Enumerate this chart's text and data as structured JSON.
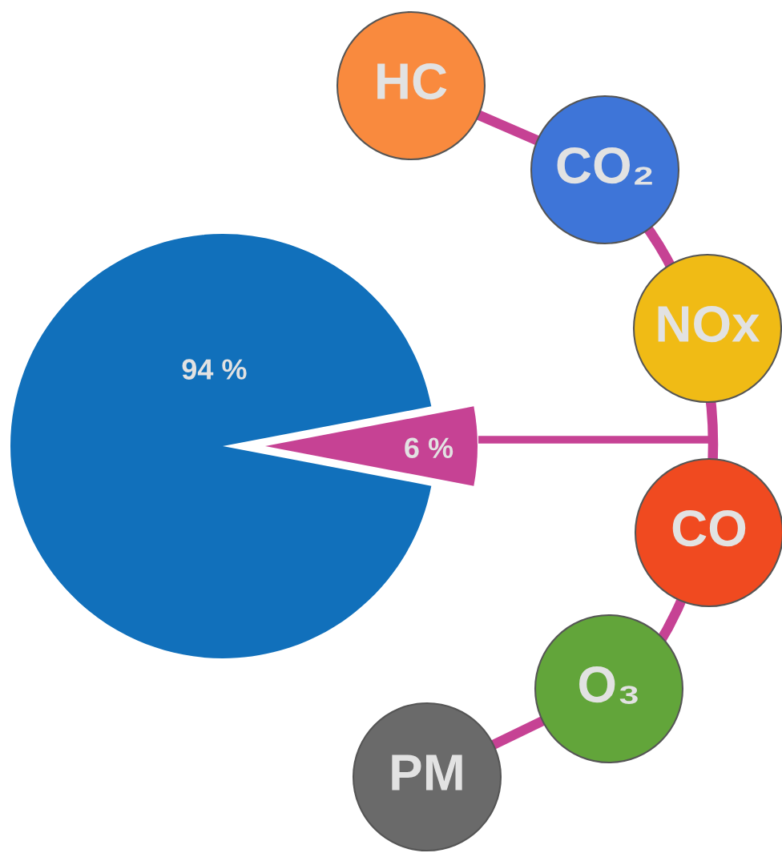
{
  "chart_data": {
    "type": "pie",
    "categories": [
      null,
      null
    ],
    "values": [
      94,
      6
    ],
    "colors": [
      "#1170bb",
      "#c64294"
    ],
    "value_labels": [
      "94 %",
      "6 %"
    ],
    "annotations": [
      "HC",
      "CO₂",
      "NOx",
      "CO",
      "O₃",
      "PM"
    ]
  }
}
